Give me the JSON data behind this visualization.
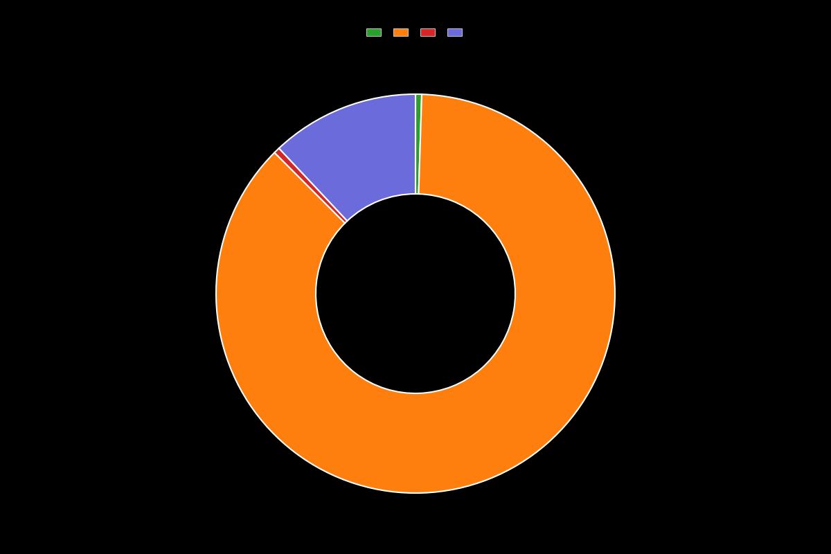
{
  "labels": [
    "",
    "",
    "",
    ""
  ],
  "values": [
    0.5,
    87.0,
    0.5,
    12.0
  ],
  "colors": [
    "#2ca02c",
    "#ff7f0e",
    "#d62728",
    "#6b6bdb"
  ],
  "background_color": "#000000",
  "wedge_edge_color": "white",
  "wedge_linewidth": 1.5,
  "donut_ratio": 0.5,
  "legend_ncol": 4,
  "figsize": [
    12.0,
    8.0
  ],
  "dpi": 100
}
